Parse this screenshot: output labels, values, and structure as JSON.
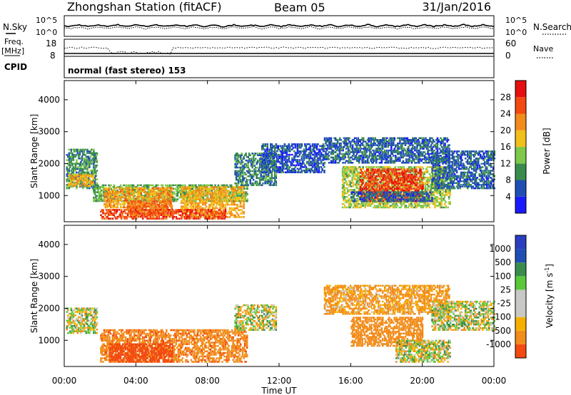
{
  "header": {
    "station_title": "Zhongshan Station (fitACF)",
    "beam": "Beam 05",
    "date": "31/Jan/2016"
  },
  "top_panels": {
    "nsky_label": "N.Sky",
    "nsearch_label": "N.Search",
    "noise_ticks_left": [
      "10^5",
      "10^0"
    ],
    "noise_ticks_right": [
      "10^5",
      "10^0"
    ],
    "freq_label": "Freq.",
    "freq_unit": "[MHz]",
    "freq_ticks": [
      "18",
      "8"
    ],
    "nave_label": "Nave",
    "nave_ticks": [
      "60",
      "0"
    ],
    "cpid_label": "CPID",
    "cpid_text": "normal (fast stereo) 153"
  },
  "colors": {
    "power_scale": [
      "#1a1aff",
      "#1f4fb5",
      "#3a8c4d",
      "#7ec94a",
      "#f2c01a",
      "#f28c1a",
      "#f24a10",
      "#e61010"
    ],
    "velocity_scale": [
      "#e61010",
      "#f24a10",
      "#f28c1a",
      "#f5b000",
      "#c8c8c4",
      "#c8c8c4",
      "#5ac83a",
      "#3a8c4d",
      "#1f4fb5",
      "#2a3fbf"
    ],
    "ground_scatter": "#c8c8c4"
  },
  "chart_data": [
    {
      "type": "heatmap",
      "quantity": "Power",
      "ylabel": "Slant Range [km]",
      "ylim": [
        180,
        4600
      ],
      "yticks": [
        1000,
        2000,
        3000,
        4000
      ],
      "xlim_hours": [
        0,
        24
      ],
      "colorbar_label": "Power [dB]",
      "colorbar_ticks": [
        "4",
        "8",
        "12",
        "16",
        "20",
        "24",
        "28"
      ],
      "clim": [
        0,
        32
      ],
      "regions": [
        {
          "t0": 0.1,
          "t1": 1.8,
          "r0": 1200,
          "r1": 2450,
          "level": 10
        },
        {
          "t0": 0.2,
          "t1": 1.6,
          "r0": 1280,
          "r1": 1650,
          "level": 20
        },
        {
          "t0": 1.6,
          "t1": 10.2,
          "r0": 800,
          "r1": 1300,
          "level": 12
        },
        {
          "t0": 2.2,
          "t1": 6.0,
          "r0": 600,
          "r1": 1250,
          "level": 21
        },
        {
          "t0": 3.5,
          "t1": 6.0,
          "r0": 350,
          "r1": 800,
          "level": 24
        },
        {
          "t0": 6.5,
          "t1": 10.0,
          "r0": 300,
          "r1": 1250,
          "level": 20
        },
        {
          "t0": 2.0,
          "t1": 9.0,
          "r0": 250,
          "r1": 550,
          "level": 26
        },
        {
          "t0": 9.5,
          "t1": 11.8,
          "r0": 1300,
          "r1": 2300,
          "level": 9
        },
        {
          "t0": 11.0,
          "t1": 14.5,
          "r0": 1700,
          "r1": 2600,
          "level": 6
        },
        {
          "t0": 14.5,
          "t1": 21.5,
          "r0": 2000,
          "r1": 2800,
          "level": 7
        },
        {
          "t0": 15.5,
          "t1": 21.5,
          "r0": 600,
          "r1": 1900,
          "level": 15
        },
        {
          "t0": 16.5,
          "t1": 20.0,
          "r0": 800,
          "r1": 1800,
          "level": 27
        },
        {
          "t0": 16.0,
          "t1": 20.5,
          "r0": 800,
          "r1": 1100,
          "level": 7
        },
        {
          "t0": 20.5,
          "t1": 24.0,
          "r0": 1200,
          "r1": 2400,
          "level": 7
        }
      ]
    },
    {
      "type": "heatmap",
      "quantity": "Velocity",
      "ylabel": "Slant Range [km]",
      "ylim": [
        180,
        4600
      ],
      "yticks": [
        1000,
        2000,
        3000,
        4000
      ],
      "xlim_hours": [
        0,
        24
      ],
      "xticks": [
        "00:00",
        "04:00",
        "08:00",
        "12:00",
        "16:00",
        "20:00",
        "00:00"
      ],
      "xlabel": "Time UT",
      "colorbar_label": "Velocity [m s^-1]",
      "colorbar_ticks": [
        "-1000",
        "-500",
        "-100",
        "-25",
        "25",
        "100",
        "500",
        "1000"
      ],
      "regions": [
        {
          "t0": 0.1,
          "t1": 1.8,
          "r0": 1200,
          "r1": 2000,
          "velocity": 0
        },
        {
          "t0": 2.0,
          "t1": 10.2,
          "r0": 300,
          "r1": 1300,
          "velocity": -400
        },
        {
          "t0": 2.5,
          "t1": 6.0,
          "r0": 300,
          "r1": 900,
          "velocity": -700
        },
        {
          "t0": 9.5,
          "t1": 11.8,
          "r0": 1300,
          "r1": 2100,
          "velocity": 0
        },
        {
          "t0": 14.5,
          "t1": 21.5,
          "r0": 1800,
          "r1": 2700,
          "velocity": -150
        },
        {
          "t0": 16.0,
          "t1": 20.0,
          "r0": 800,
          "r1": 1700,
          "velocity": -300
        },
        {
          "t0": 18.5,
          "t1": 21.5,
          "r0": 300,
          "r1": 1000,
          "velocity": 0
        },
        {
          "t0": 20.5,
          "t1": 24.0,
          "r0": 1300,
          "r1": 2200,
          "velocity": 0
        }
      ]
    }
  ]
}
